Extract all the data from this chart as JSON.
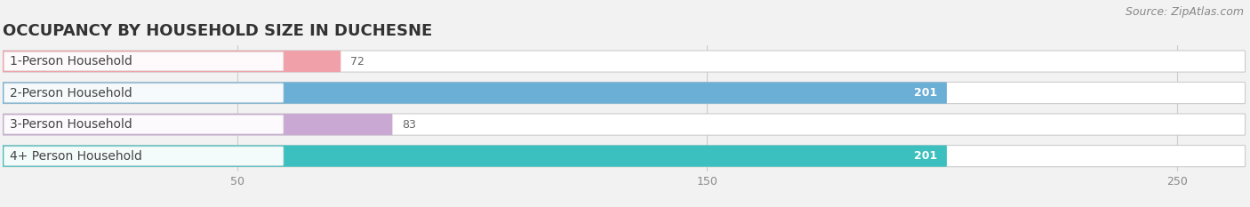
{
  "title": "OCCUPANCY BY HOUSEHOLD SIZE IN DUCHESNE",
  "source": "Source: ZipAtlas.com",
  "categories": [
    "1-Person Household",
    "2-Person Household",
    "3-Person Household",
    "4+ Person Household"
  ],
  "values": [
    72,
    201,
    83,
    201
  ],
  "bar_colors": [
    "#f0a0a8",
    "#6baed6",
    "#c9a8d4",
    "#3bbfbf"
  ],
  "xlim_max": 265,
  "xticks": [
    50,
    150,
    250
  ],
  "bg_color": "#f2f2f2",
  "bar_bg_color": "#e4e4e4",
  "bar_height": 0.68,
  "bar_gap": 0.18,
  "title_fontsize": 13,
  "label_fontsize": 10,
  "value_fontsize": 9,
  "source_fontsize": 9,
  "tick_fontsize": 9
}
